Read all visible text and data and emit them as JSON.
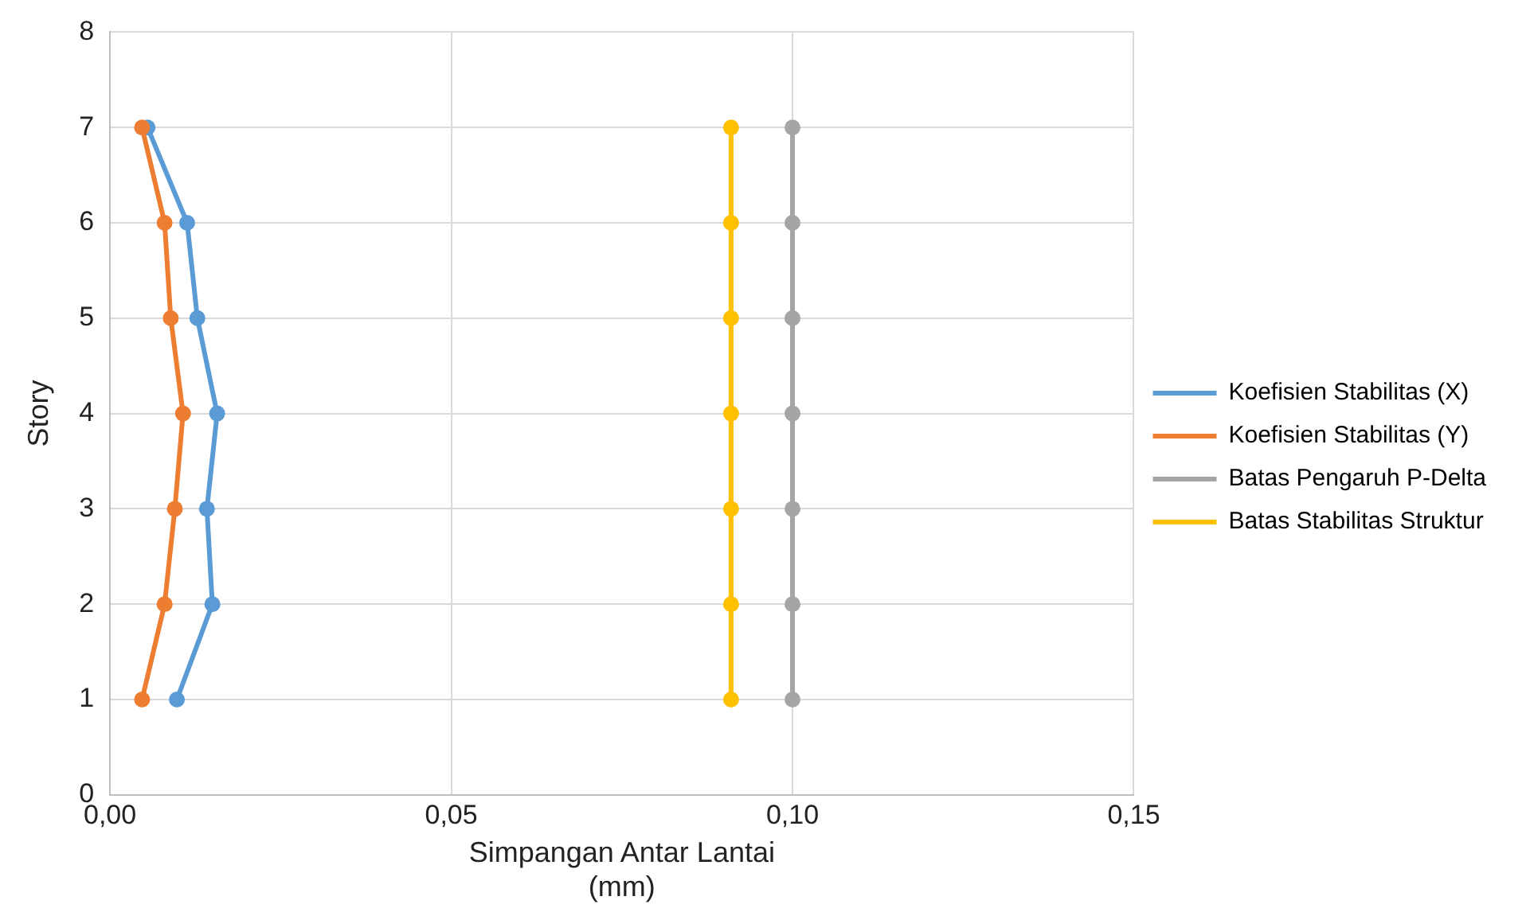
{
  "chart_data": {
    "type": "line",
    "xlabel": "Simpangan Antar Lantai\n(mm)",
    "ylabel": "Story",
    "xlim": [
      0,
      0.15
    ],
    "xticks": [
      {
        "value": 0,
        "label": "0,00"
      },
      {
        "value": 0.05,
        "label": "0,05"
      },
      {
        "value": 0.1,
        "label": "0,10"
      },
      {
        "value": 0.15,
        "label": "0,15"
      }
    ],
    "ylim": [
      0,
      8
    ],
    "yticks": [
      0,
      1,
      2,
      3,
      4,
      5,
      6,
      7,
      8
    ],
    "grid": true,
    "legend": "right",
    "marker": "circle",
    "line_style": "solid",
    "series": [
      {
        "name": "Koefisien Stabilitas (X)",
        "color": "#5b9bd5",
        "x": [
          0.0098,
          0.015,
          0.0142,
          0.0157,
          0.0128,
          0.0113,
          0.0055
        ],
        "values": [
          1,
          2,
          3,
          4,
          5,
          6,
          7
        ]
      },
      {
        "name": "Koefisien Stabilitas (Y)",
        "color": "#ed7d31",
        "x": [
          0.0047,
          0.008,
          0.0095,
          0.0107,
          0.0089,
          0.008,
          0.0047
        ],
        "values": [
          1,
          2,
          3,
          4,
          5,
          6,
          7
        ]
      },
      {
        "name": "Batas Pengaruh P-Delta",
        "color": "#a5a5a5",
        "x": [
          0.1,
          0.1,
          0.1,
          0.1,
          0.1,
          0.1,
          0.1
        ],
        "values": [
          1,
          2,
          3,
          4,
          5,
          6,
          7
        ]
      },
      {
        "name": "Batas Stabilitas Struktur",
        "color": "#ffc000",
        "x": [
          0.091,
          0.091,
          0.091,
          0.091,
          0.091,
          0.091,
          0.091
        ],
        "values": [
          1,
          2,
          3,
          4,
          5,
          6,
          7
        ]
      }
    ]
  }
}
